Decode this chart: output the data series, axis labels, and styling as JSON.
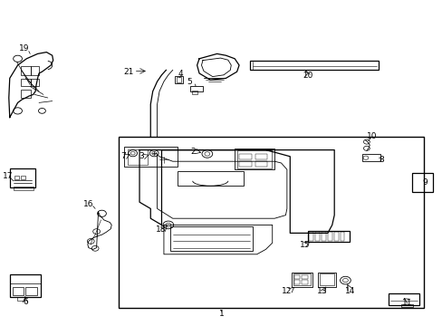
{
  "bg_color": "#ffffff",
  "line_color": "#000000",
  "figure_width": 4.89,
  "figure_height": 3.6,
  "dpi": 100,
  "title": ""
}
